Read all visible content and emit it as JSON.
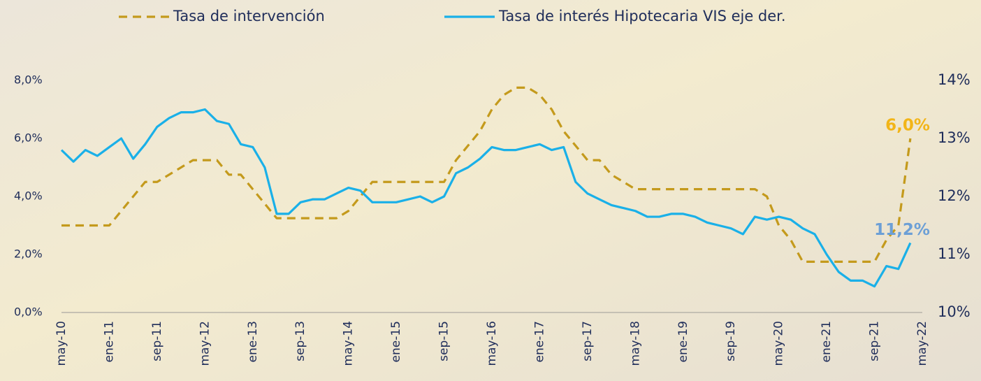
{
  "chart_data": {
    "type": "line",
    "categories": [
      "may-10",
      null,
      null,
      null,
      "ene-11",
      null,
      null,
      null,
      "sep-11",
      null,
      null,
      null,
      "may-12",
      null,
      null,
      null,
      "ene-13",
      null,
      null,
      null,
      "sep-13",
      null,
      null,
      null,
      "may-14",
      null,
      null,
      null,
      "ene-15",
      null,
      null,
      null,
      "sep-15",
      null,
      null,
      null,
      "may-16",
      null,
      null,
      null,
      "ene-17",
      null,
      null,
      null,
      "sep-17",
      null,
      null,
      null,
      "may-18",
      null,
      null,
      null,
      "ene-19",
      null,
      null,
      null,
      "sep-19",
      null,
      null,
      null,
      "may-20",
      null,
      null,
      null,
      "ene-21",
      null,
      null,
      null,
      "sep-21",
      null,
      null,
      null,
      "may-22"
    ],
    "series": [
      {
        "name": "Tasa de intervención",
        "color": "#c49a1c",
        "label_color": "#f2b518",
        "dash": true,
        "values": [
          3.0,
          3.0,
          3.0,
          3.0,
          3.0,
          3.5,
          4.0,
          4.5,
          4.5,
          4.75,
          5.0,
          5.25,
          5.25,
          5.25,
          4.75,
          4.75,
          4.25,
          3.75,
          3.25,
          3.25,
          3.25,
          3.25,
          3.25,
          3.25,
          3.5,
          4.0,
          4.5,
          4.5,
          4.5,
          4.5,
          4.5,
          4.5,
          4.5,
          5.25,
          5.75,
          6.25,
          7.0,
          7.5,
          7.75,
          7.75,
          7.5,
          7.0,
          6.25,
          5.75,
          5.25,
          5.25,
          4.75,
          4.5,
          4.25,
          4.25,
          4.25,
          4.25,
          4.25,
          4.25,
          4.25,
          4.25,
          4.25,
          4.25,
          4.25,
          4.0,
          3.0,
          2.5,
          1.75,
          1.75,
          1.75,
          1.75,
          1.75,
          1.75,
          1.75,
          2.5,
          3.0,
          6.0,
          null
        ],
        "value_labels": [
          null,
          null,
          null,
          null,
          null,
          null,
          null,
          null,
          null,
          null,
          null,
          null,
          null,
          null,
          null,
          null,
          null,
          null,
          null,
          null,
          null,
          null,
          null,
          null,
          null,
          null,
          null,
          null,
          null,
          null,
          null,
          null,
          null,
          null,
          null,
          null,
          null,
          null,
          null,
          null,
          null,
          null,
          null,
          null,
          null,
          null,
          null,
          null,
          null,
          null,
          null,
          null,
          null,
          null,
          null,
          null,
          null,
          null,
          null,
          null,
          null,
          null,
          null,
          null,
          null,
          null,
          null,
          null,
          null,
          null,
          null,
          "6,0%",
          null
        ]
      },
      {
        "name": "Tasa de interés Hipotecaria VIS eje der.",
        "color": "#1ab0e8",
        "label_color": "#6c9fd6",
        "axis": "y2",
        "values": [
          12.8,
          12.6,
          12.8,
          12.7,
          12.85,
          13.0,
          12.65,
          12.9,
          13.2,
          13.35,
          13.45,
          13.45,
          13.5,
          13.3,
          13.25,
          12.9,
          12.85,
          12.5,
          11.7,
          11.7,
          11.9,
          11.95,
          11.95,
          12.05,
          12.15,
          12.1,
          11.9,
          11.9,
          11.9,
          11.95,
          12.0,
          11.9,
          12.0,
          12.4,
          12.5,
          12.65,
          12.85,
          12.8,
          12.8,
          12.85,
          12.9,
          12.8,
          12.85,
          12.25,
          12.05,
          11.95,
          11.85,
          11.8,
          11.75,
          11.65,
          11.65,
          11.7,
          11.7,
          11.65,
          11.55,
          11.5,
          11.45,
          11.35,
          11.65,
          11.6,
          11.65,
          11.6,
          11.45,
          11.35,
          11.0,
          10.7,
          10.55,
          10.55,
          10.45,
          10.8,
          10.75,
          11.2,
          null
        ],
        "value_labels": [
          null,
          null,
          null,
          null,
          null,
          null,
          null,
          null,
          null,
          null,
          null,
          null,
          null,
          null,
          null,
          null,
          null,
          null,
          null,
          null,
          null,
          null,
          null,
          null,
          null,
          null,
          null,
          null,
          null,
          null,
          null,
          null,
          null,
          null,
          null,
          null,
          null,
          null,
          null,
          null,
          null,
          null,
          null,
          null,
          null,
          null,
          null,
          null,
          null,
          null,
          null,
          null,
          null,
          null,
          null,
          null,
          null,
          null,
          null,
          null,
          null,
          null,
          null,
          null,
          null,
          null,
          null,
          null,
          null,
          null,
          null,
          "11,2%",
          null
        ]
      }
    ],
    "ylim": [
      0,
      8
    ],
    "yticks": [
      {
        "value": 0,
        "label": "0,0%"
      },
      {
        "value": 2,
        "label": "2,0%"
      },
      {
        "value": 4,
        "label": "4,0%"
      },
      {
        "value": 6,
        "label": "6,0%"
      },
      {
        "value": 8,
        "label": "8,0%"
      }
    ],
    "y2lim": [
      10,
      14
    ],
    "y2ticks": [
      {
        "value": 10,
        "label": "10%"
      },
      {
        "value": 11,
        "label": "11%"
      },
      {
        "value": 12,
        "label": "12%"
      },
      {
        "value": 13,
        "label": "13%"
      },
      {
        "value": 14,
        "label": "14%"
      }
    ],
    "grid": false
  }
}
